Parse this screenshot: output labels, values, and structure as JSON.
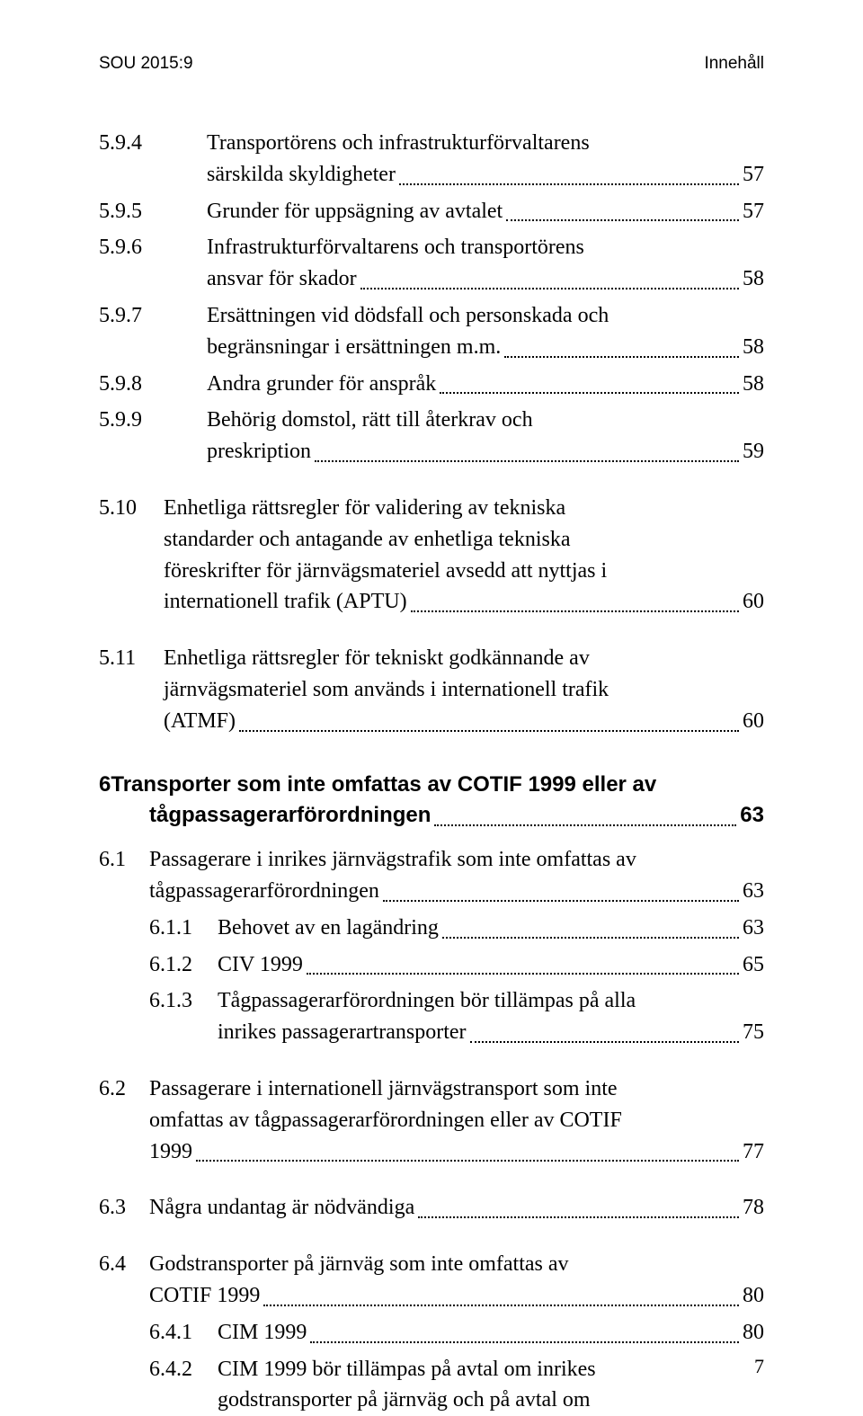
{
  "header": {
    "left": "SOU 2015:9",
    "right": "Innehåll"
  },
  "toc": {
    "s594": {
      "num": "5.9.4",
      "title_l1": "Transportörens och infrastrukturförvaltarens",
      "title_l2": "särskilda skyldigheter",
      "page": "57"
    },
    "s595": {
      "num": "5.9.5",
      "title": "Grunder för uppsägning av avtalet",
      "page": "57"
    },
    "s596": {
      "num": "5.9.6",
      "title_l1": "Infrastrukturförvaltarens och transportörens",
      "title_l2": "ansvar för skador",
      "page": "58"
    },
    "s597": {
      "num": "5.9.7",
      "title_l1": "Ersättningen vid dödsfall och personskada och",
      "title_l2": "begränsningar i ersättningen m.m.",
      "page": "58"
    },
    "s598": {
      "num": "5.9.8",
      "title": "Andra grunder för anspråk",
      "page": "58"
    },
    "s599": {
      "num": "5.9.9",
      "title_l1": "Behörig domstol, rätt till återkrav och",
      "title_l2": "preskription",
      "page": "59"
    },
    "s510": {
      "num": "5.10",
      "title_l1": "Enhetliga rättsregler för validering av tekniska",
      "title_l2": "standarder och antagande av enhetliga tekniska",
      "title_l3": "föreskrifter för järnvägsmateriel avsedd att nyttjas i",
      "title_l4": "internationell trafik (APTU)",
      "page": "60"
    },
    "s511": {
      "num": "5.11",
      "title_l1": "Enhetliga rättsregler för tekniskt godkännande av",
      "title_l2": "järnvägsmateriel som används i internationell trafik",
      "title_l3": "(ATMF)",
      "page": "60"
    },
    "ch6": {
      "num": "6",
      "title_l1": "Transporter som inte omfattas av COTIF 1999 eller av",
      "title_l2": "tågpassagerarförordningen",
      "page": "63"
    },
    "s61": {
      "num": "6.1",
      "title_l1": "Passagerare i inrikes järnvägstrafik som inte omfattas av",
      "title_l2": "tågpassagerarförordningen",
      "page": "63"
    },
    "s611": {
      "num": "6.1.1",
      "title": "Behovet av en lagändring",
      "page": "63"
    },
    "s612": {
      "num": "6.1.2",
      "title": "CIV 1999",
      "page": "65"
    },
    "s613": {
      "num": "6.1.3",
      "title_l1": "Tågpassagerarförordningen bör tillämpas på alla",
      "title_l2": "inrikes passagerartransporter",
      "page": "75"
    },
    "s62": {
      "num": "6.2",
      "title_l1": "Passagerare i internationell järnvägstransport som inte",
      "title_l2": "omfattas av tågpassagerarförordningen eller av COTIF",
      "title_l3": "1999",
      "page": "77"
    },
    "s63": {
      "num": "6.3",
      "title": "Några undantag är nödvändiga",
      "page": "78"
    },
    "s64": {
      "num": "6.4",
      "title_l1": "Godstransporter på järnväg som inte omfattas av",
      "title_l2": "COTIF 1999",
      "page": "80"
    },
    "s641": {
      "num": "6.4.1",
      "title": "CIM 1999",
      "page": "80"
    },
    "s642": {
      "num": "6.4.2",
      "title_l1": "CIM 1999 bör tillämpas på avtal om inrikes",
      "title_l2": "godstransporter på järnväg och på avtal om"
    }
  },
  "pagenum": "7"
}
